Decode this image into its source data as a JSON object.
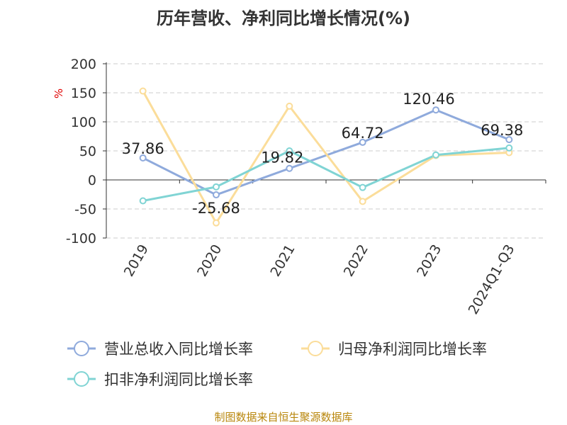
{
  "chart_data": {
    "type": "line",
    "title": "历年营收、净利同比增长情况(%)",
    "ylabel": "%",
    "categories": [
      "2019",
      "2020",
      "2021",
      "2022",
      "2023",
      "2024Q1-Q3"
    ],
    "ylim": [
      -100,
      200
    ],
    "yticks": [
      200,
      150,
      100,
      50,
      0,
      -50,
      -100
    ],
    "grid": true,
    "legend_position": "bottom",
    "series": [
      {
        "name": "营业总收入同比增长率",
        "color": "#8faadc",
        "values": [
          37.86,
          -25.68,
          19.82,
          64.72,
          120.46,
          69.38
        ],
        "data_labels": [
          "37.86",
          "-25.68",
          "19.82",
          "64.72",
          "120.46",
          "69.38"
        ]
      },
      {
        "name": "归母净利润同比增长率",
        "color": "#fbdd9a",
        "values": [
          153,
          -74,
          127,
          -37,
          42,
          47
        ]
      },
      {
        "name": "扣非净利润同比增长率",
        "color": "#80d4d4",
        "values": [
          -36,
          -12,
          50,
          -13,
          43,
          55
        ]
      }
    ]
  },
  "source": "制图数据来自恒生聚源数据库"
}
